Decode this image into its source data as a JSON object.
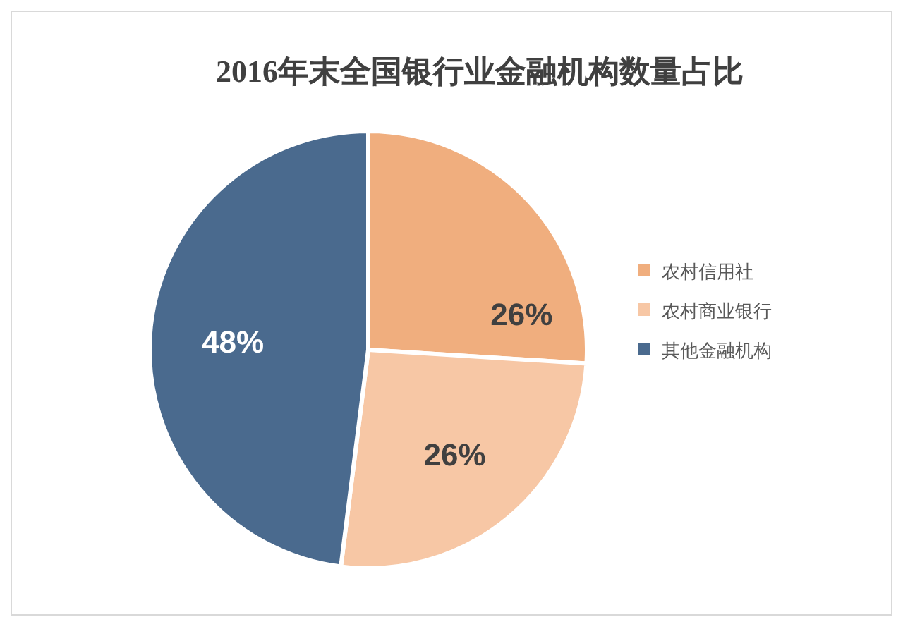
{
  "chart_data": {
    "type": "pie",
    "title": "2016年末全国银行业金融机构数量占比",
    "categories": [
      "农村信用社",
      "农村商业银行",
      "其他金融机构"
    ],
    "values": [
      26,
      26,
      48
    ],
    "colors": [
      "#f0ae7e",
      "#f7c7a5",
      "#4a6a8e"
    ],
    "value_labels": [
      "26%",
      "26%",
      "48%"
    ],
    "legend": "right"
  }
}
